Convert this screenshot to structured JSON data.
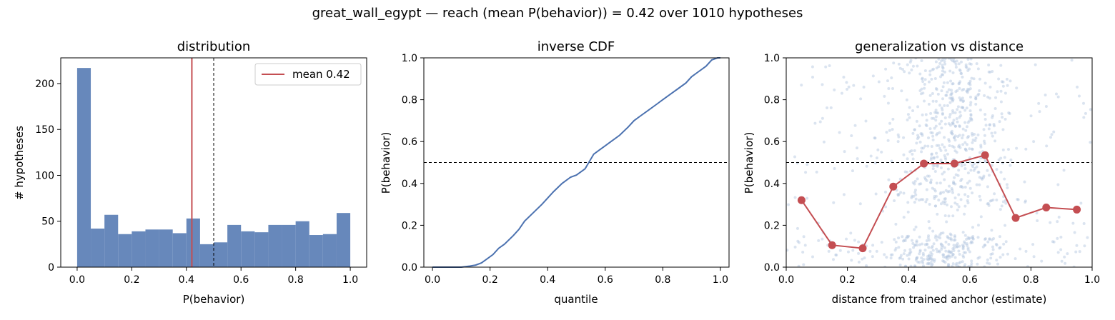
{
  "suptitle": "great_wall_egypt  —  reach (mean P(behavior)) = 0.42  over 1010 hypotheses",
  "colors": {
    "bar": "#6788bb",
    "mean": "#c44e52",
    "line": "#4c72b0",
    "dot": "#c44e52",
    "scatter": "#b0c4de",
    "threshold": "#000000"
  },
  "chart_data": [
    {
      "type": "bar",
      "title": "distribution",
      "xlabel": "P(behavior)",
      "ylabel": "# hypotheses",
      "bin_edges": [
        0.0,
        0.05,
        0.1,
        0.15,
        0.2,
        0.25,
        0.3,
        0.35,
        0.4,
        0.45,
        0.5,
        0.55,
        0.6,
        0.65,
        0.7,
        0.75,
        0.8,
        0.85,
        0.9,
        0.95,
        1.0
      ],
      "values": [
        217,
        42,
        57,
        36,
        39,
        41,
        41,
        37,
        53,
        25,
        27,
        46,
        39,
        38,
        46,
        46,
        50,
        35,
        36,
        59
      ],
      "xlim": [
        -0.06,
        1.06
      ],
      "ylim": [
        0,
        228
      ],
      "xticks": [
        "0.0",
        "0.2",
        "0.4",
        "0.6",
        "0.8",
        "1.0"
      ],
      "yticks": [
        "0",
        "50",
        "100",
        "150",
        "200"
      ],
      "mean": 0.42,
      "threshold": 0.5,
      "legend": {
        "label": "mean 0.42",
        "position": "top-right"
      }
    },
    {
      "type": "line",
      "title": "inverse CDF",
      "xlabel": "quantile",
      "ylabel": "P(behavior)",
      "x": [
        0.0,
        0.1,
        0.13,
        0.15,
        0.17,
        0.19,
        0.21,
        0.23,
        0.25,
        0.28,
        0.3,
        0.32,
        0.35,
        0.38,
        0.4,
        0.42,
        0.45,
        0.48,
        0.5,
        0.53,
        0.56,
        0.58,
        0.6,
        0.62,
        0.65,
        0.68,
        0.7,
        0.72,
        0.75,
        0.78,
        0.8,
        0.83,
        0.85,
        0.88,
        0.9,
        0.92,
        0.95,
        0.97,
        0.99,
        1.0
      ],
      "y": [
        0.0,
        0.0,
        0.005,
        0.01,
        0.02,
        0.04,
        0.06,
        0.09,
        0.11,
        0.15,
        0.18,
        0.22,
        0.26,
        0.3,
        0.33,
        0.36,
        0.4,
        0.43,
        0.44,
        0.47,
        0.54,
        0.56,
        0.58,
        0.6,
        0.63,
        0.67,
        0.7,
        0.72,
        0.75,
        0.78,
        0.8,
        0.83,
        0.85,
        0.88,
        0.91,
        0.93,
        0.96,
        0.99,
        1.0,
        1.0
      ],
      "xlim": [
        -0.03,
        1.03
      ],
      "ylim": [
        0,
        1
      ],
      "xticks": [
        "0.0",
        "0.2",
        "0.4",
        "0.6",
        "0.8",
        "1.0"
      ],
      "yticks": [
        "0.0",
        "0.2",
        "0.4",
        "0.6",
        "0.8",
        "1.0"
      ],
      "threshold": 0.5
    },
    {
      "type": "scatter",
      "title": "generalization vs distance",
      "xlabel": "distance from trained anchor (estimate)",
      "ylabel": "P(behavior)",
      "binned_x": [
        0.05,
        0.15,
        0.25,
        0.35,
        0.45,
        0.55,
        0.65,
        0.75,
        0.85,
        0.95
      ],
      "binned_y": [
        0.32,
        0.105,
        0.09,
        0.385,
        0.495,
        0.495,
        0.535,
        0.235,
        0.285,
        0.275
      ],
      "xlim": [
        0,
        1
      ],
      "ylim": [
        0,
        1
      ],
      "xticks": [
        "0.0",
        "0.2",
        "0.4",
        "0.6",
        "0.8",
        "1.0"
      ],
      "yticks": [
        "0.0",
        "0.2",
        "0.4",
        "0.6",
        "0.8",
        "1.0"
      ],
      "threshold": 0.5,
      "n_points": 1010
    }
  ]
}
